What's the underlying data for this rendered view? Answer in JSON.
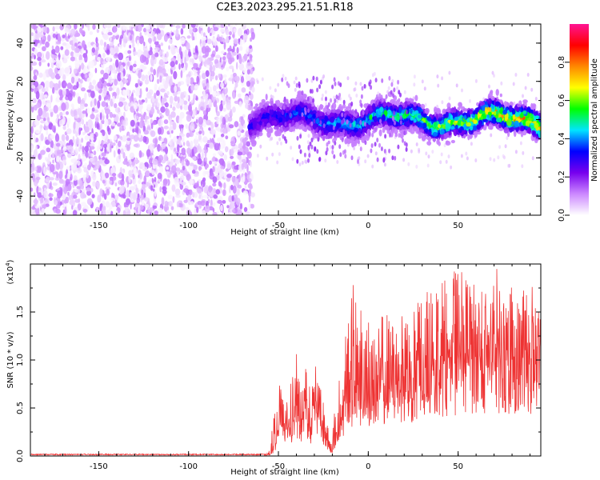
{
  "title": "C2E3.2023.295.21.51.R18",
  "chart_data": [
    {
      "type": "heatmap",
      "title": "C2E3.2023.295.21.51.R18",
      "xlabel": "Height of straight line (km)",
      "ylabel": "Frequency (Hz)",
      "xlim": [
        -188,
        96
      ],
      "ylim": [
        -50,
        50
      ],
      "x_ticks": [
        -150,
        -100,
        -50,
        0,
        50
      ],
      "y_ticks": [
        -40,
        -20,
        0,
        20,
        40
      ],
      "grid": false,
      "colorbar": {
        "label": "Normalized spectral amplitude",
        "range": [
          0,
          1
        ],
        "ticks": [
          0.0,
          0.2,
          0.4,
          0.6,
          0.8
        ],
        "colormap": [
          "#ffffff",
          "#cc88ff",
          "#7700ee",
          "#0000ff",
          "#00e5ff",
          "#00ff00",
          "#ffff00",
          "#ff8800",
          "#ff0000",
          "#ff1493"
        ]
      },
      "regions": [
        {
          "name": "noise",
          "x_range": [
            -188,
            -66
          ],
          "frequency_range": [
            -50,
            50
          ],
          "amplitude_range": [
            0.0,
            0.15
          ]
        },
        {
          "name": "signal",
          "x_range": [
            -66,
            96
          ],
          "center_frequency": 0,
          "band_halfwidth_hz": 7,
          "amplitude_range": [
            0.1,
            0.9
          ]
        }
      ]
    },
    {
      "type": "line",
      "xlabel": "Height of straight line (km)",
      "ylabel": "SNR (10 * v/v)",
      "multiplier": "(x10^4)",
      "multiplier_base": "(x10",
      "multiplier_exp": "4",
      "xlim": [
        -188,
        96
      ],
      "ylim": [
        0,
        2.0
      ],
      "x_ticks": [
        -150,
        -100,
        -50,
        0,
        50
      ],
      "y_ticks": [
        0.0,
        0.5,
        1.0,
        1.5
      ],
      "grid": false,
      "series": [
        {
          "color": "#ee3333",
          "x": [
            -188,
            -60,
            -55,
            -52,
            -50,
            -48,
            -45,
            -42,
            -40,
            -38,
            -35,
            -32,
            -30,
            -28,
            -25,
            -22,
            -20,
            -18,
            -15,
            -12,
            -10,
            -5,
            0,
            5,
            10,
            20,
            30,
            40,
            50,
            60,
            70,
            80,
            90,
            96
          ],
          "y_mean": [
            0.01,
            0.01,
            0.02,
            0.1,
            0.3,
            0.4,
            0.25,
            0.35,
            0.45,
            0.3,
            0.55,
            0.3,
            0.6,
            0.5,
            0.25,
            0.1,
            0.05,
            0.2,
            0.4,
            0.7,
            0.75,
            0.7,
            0.65,
            0.7,
            0.85,
            0.85,
            0.9,
            1.0,
            1.05,
            1.1,
            1.1,
            1.05,
            1.05,
            1.05
          ],
          "y_max": [
            0.03,
            0.03,
            0.1,
            0.55,
            0.75,
            0.8,
            0.7,
            0.9,
            1.2,
            0.8,
            1.0,
            0.75,
            1.1,
            0.9,
            0.6,
            0.3,
            0.2,
            0.65,
            1.0,
            1.45,
            1.9,
            1.55,
            1.5,
            1.4,
            1.55,
            1.6,
            1.65,
            1.9,
            1.95,
            1.8,
            2.0,
            1.75,
            1.85,
            1.65
          ]
        }
      ]
    }
  ]
}
